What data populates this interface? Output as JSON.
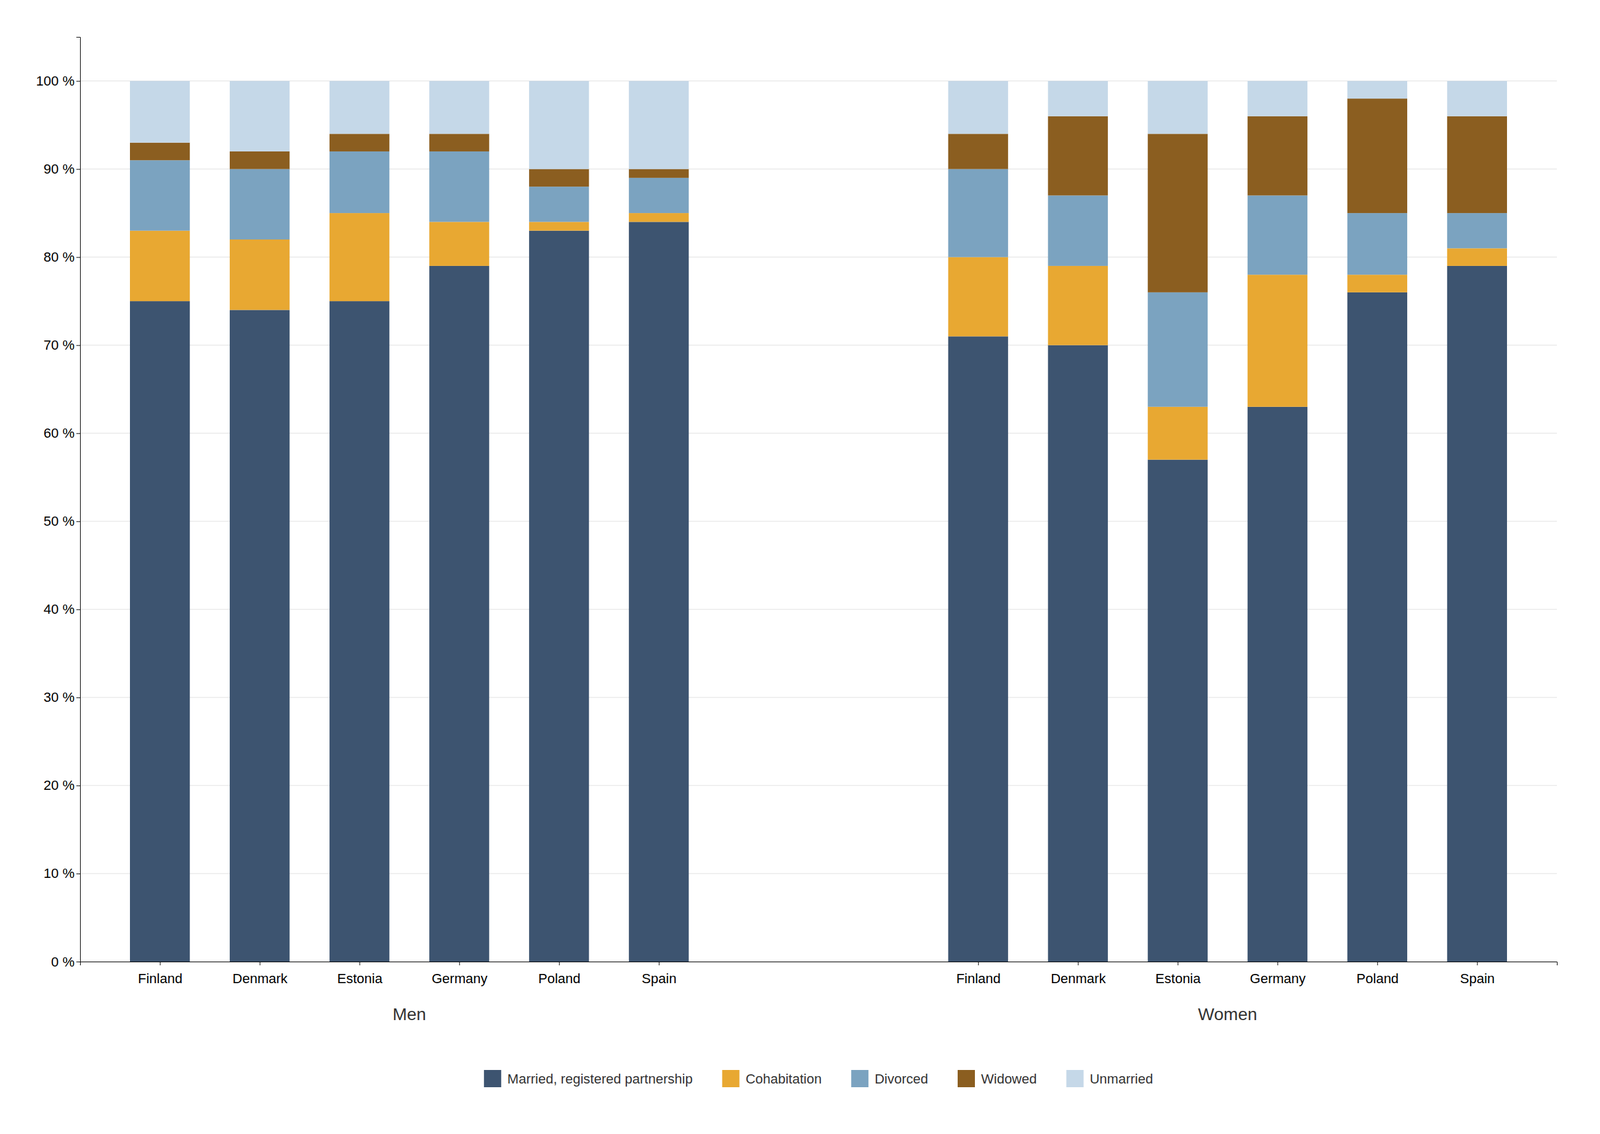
{
  "chart_data": {
    "type": "bar",
    "stacked": true,
    "grid": true,
    "legend": "bottom",
    "categories": [
      "Finland",
      "Denmark",
      "Estonia",
      "Germany",
      "Poland",
      "Spain",
      "Finland",
      "Denmark",
      "Estonia",
      "Germany",
      "Poland",
      "Spain"
    ],
    "annotations": [
      "Men",
      "Women"
    ],
    "series": [
      {
        "name": "Married, registered partnership",
        "color": "#3d5470",
        "values": [
          75,
          74,
          75,
          79,
          83,
          84,
          71,
          70,
          57,
          63,
          76,
          79
        ]
      },
      {
        "name": "Cohabitation",
        "color": "#e8a832",
        "values": [
          8,
          8,
          10,
          5,
          1,
          1,
          9,
          9,
          6,
          15,
          2,
          2
        ]
      },
      {
        "name": "Divorced",
        "color": "#7ba3c0",
        "values": [
          8,
          8,
          7,
          8,
          4,
          4,
          10,
          8,
          13,
          9,
          7,
          4
        ]
      },
      {
        "name": "Widowed",
        "color": "#8b5e20",
        "values": [
          2,
          2,
          2,
          2,
          2,
          1,
          4,
          9,
          18,
          9,
          13,
          11
        ]
      },
      {
        "name": "Unmarried",
        "color": "#c5d8e8",
        "values": [
          7,
          8,
          6,
          6,
          10,
          10,
          6,
          4,
          6,
          4,
          2,
          4
        ]
      }
    ],
    "ylim": [
      0,
      105
    ],
    "yticks": [
      {
        "value": 0,
        "label": "0 %"
      },
      {
        "value": 10,
        "label": "10 %"
      },
      {
        "value": 20,
        "label": "20 %"
      },
      {
        "value": 30,
        "label": "30 %"
      },
      {
        "value": 40,
        "label": "40 %"
      },
      {
        "value": 50,
        "label": "50 %"
      },
      {
        "value": 60,
        "label": "60 %"
      },
      {
        "value": 70,
        "label": "70 %"
      },
      {
        "value": 80,
        "label": "80 %"
      },
      {
        "value": 90,
        "label": "90 %"
      },
      {
        "value": 100,
        "label": "100 %"
      }
    ]
  }
}
